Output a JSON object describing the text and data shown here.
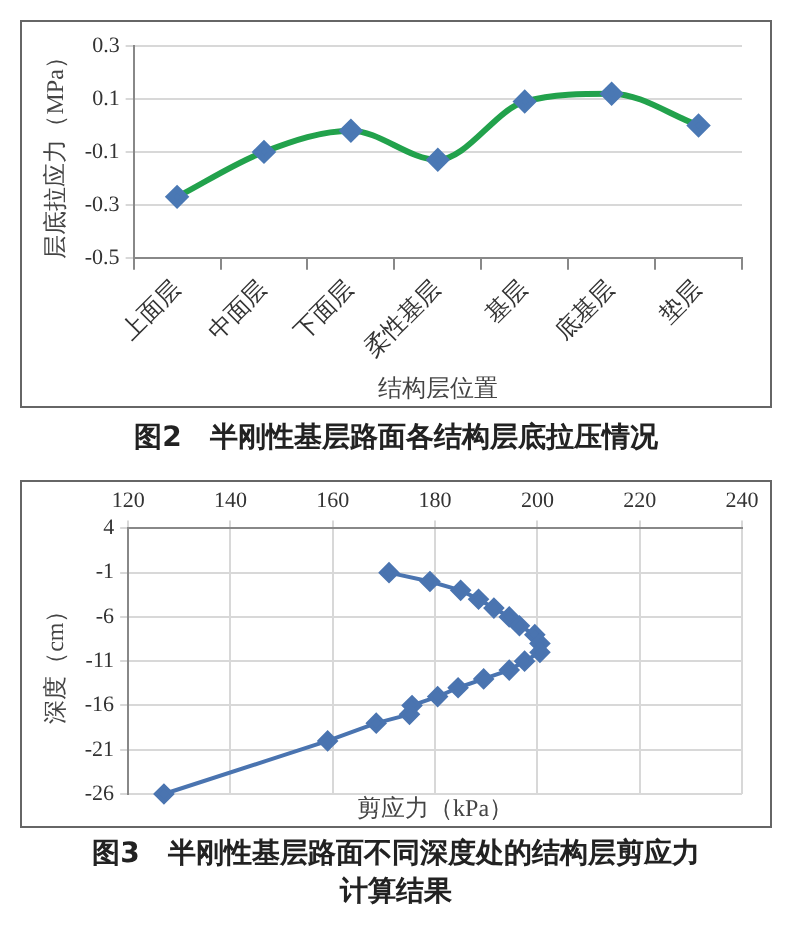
{
  "chart_data": [
    {
      "type": "line",
      "title": "图2　半刚性基层路面各结构层底拉压情况",
      "xlabel": "结构层位置",
      "ylabel": "层底拉应力（MPa）",
      "categories": [
        "上面层",
        "中面层",
        "下面层",
        "柔性基层",
        "基层",
        "底基层",
        "垫层"
      ],
      "series": [
        {
          "color": "#22a24c",
          "colors": [
            "#4a78b4",
            "#4a78b4",
            "#4a78b4",
            "#4a78b4",
            "#4a78b4",
            "#4a78b4",
            "#4a78b4"
          ],
          "values": [
            -0.27,
            -0.1,
            -0.02,
            -0.13,
            0.09,
            0.12,
            0.0
          ]
        }
      ],
      "ylim": [
        -0.5,
        0.3
      ],
      "yticks": [
        -0.5,
        -0.3,
        -0.1,
        0.1,
        0.3
      ],
      "grid": "y",
      "marker": "diamond"
    },
    {
      "type": "line",
      "title": "图3　半刚性基层路面不同深度处的结构层剪应力计算结果",
      "xlabel": "剪应力（kPa）",
      "ylabel": "深度（cm）",
      "x": [
        171,
        179,
        185,
        188.5,
        191.5,
        194.5,
        196.5,
        199.5,
        200.5,
        200.5,
        197.5,
        194.5,
        189.5,
        184.5,
        180.5,
        175.5,
        175,
        168.5,
        159,
        127
      ],
      "series": [
        {
          "color": "#4a74b0",
          "values": [
            -1,
            -2,
            -3,
            -4,
            -5,
            -6,
            -7,
            -8,
            -9,
            -10,
            -11,
            -12,
            -13,
            -14,
            -15,
            -16,
            -17,
            -18,
            -20,
            -26
          ]
        }
      ],
      "xlim": [
        120,
        240
      ],
      "xticks": [
        120,
        140,
        160,
        180,
        200,
        220,
        240
      ],
      "ylim": [
        -26,
        4
      ],
      "yticks": [
        4,
        -1,
        -6,
        -11,
        -16,
        -21,
        -26
      ],
      "grid": true,
      "marker": "diamond"
    }
  ]
}
